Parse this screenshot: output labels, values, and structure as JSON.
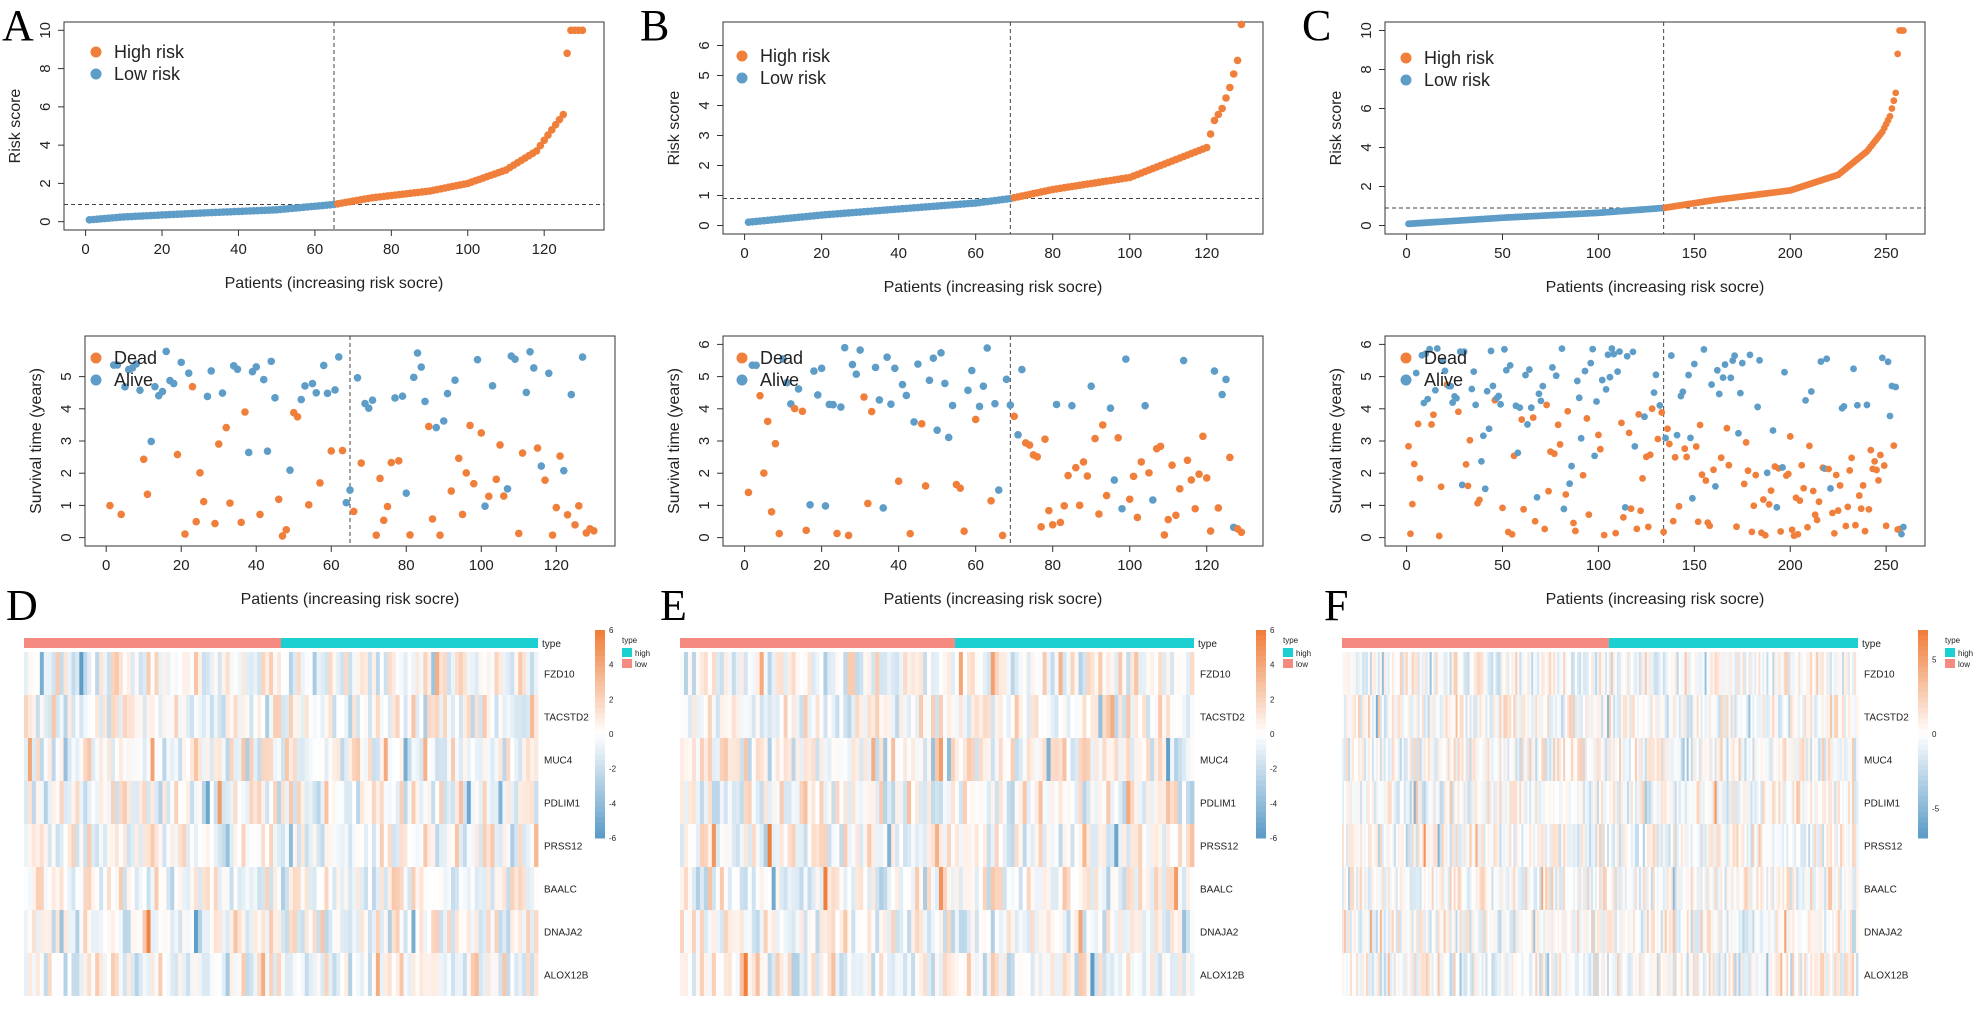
{
  "colors": {
    "high": "#f07f3c",
    "low": "#5d9dc8",
    "dead": "#f07f3c",
    "alive": "#5d9dc8",
    "type_high": "#1ccfd0",
    "type_low": "#f58b80",
    "heat_high": "#f07f3c",
    "heat_mid": "#ffffff",
    "heat_low": "#5d9dc8"
  },
  "panels": {
    "A": "A",
    "B": "B",
    "C": "C",
    "D": "D",
    "E": "E",
    "F": "F"
  },
  "genes": [
    "FZD10",
    "TACSTD2",
    "MUC4",
    "PDLIM1",
    "PRSS12",
    "BAALC",
    "DNAJA2",
    "ALOX12B"
  ],
  "chart_data": [
    {
      "id": "A-risk",
      "type": "scatter",
      "title": "",
      "xlabel": "Patients (increasing risk socre)",
      "ylabel": "Risk score",
      "n": 130,
      "cutoff_index": 65,
      "cutoff_value": 0.9,
      "xlim": [
        0,
        130
      ],
      "ylim": [
        0,
        10
      ],
      "xticks": [
        0,
        20,
        40,
        60,
        80,
        100,
        120
      ],
      "yticks": [
        0,
        2,
        4,
        6,
        8,
        10
      ],
      "legend": [
        {
          "label": "High risk",
          "color": "high"
        },
        {
          "label": "Low risk",
          "color": "low"
        }
      ],
      "curve": [
        [
          0,
          0.08
        ],
        [
          10,
          0.25
        ],
        [
          30,
          0.45
        ],
        [
          50,
          0.62
        ],
        [
          65,
          0.9
        ],
        [
          75,
          1.25
        ],
        [
          90,
          1.6
        ],
        [
          100,
          2.0
        ],
        [
          110,
          2.7
        ],
        [
          118,
          3.7
        ],
        [
          122,
          4.8
        ],
        [
          125,
          5.6
        ],
        [
          126,
          8.8
        ],
        [
          127,
          10
        ],
        [
          130,
          10
        ]
      ]
    },
    {
      "id": "B-risk",
      "type": "scatter",
      "title": "",
      "xlabel": "Patients (increasing risk socre)",
      "ylabel": "Risk score",
      "n": 129,
      "cutoff_index": 69,
      "cutoff_value": 0.9,
      "xlim": [
        0,
        129
      ],
      "ylim": [
        0,
        6.5
      ],
      "xticks": [
        0,
        20,
        40,
        60,
        80,
        100,
        120
      ],
      "yticks": [
        0,
        1,
        2,
        3,
        4,
        5,
        6
      ],
      "legend": [
        {
          "label": "High risk",
          "color": "high"
        },
        {
          "label": "Low risk",
          "color": "low"
        }
      ],
      "curve": [
        [
          0,
          0.1
        ],
        [
          20,
          0.35
        ],
        [
          40,
          0.55
        ],
        [
          60,
          0.75
        ],
        [
          69,
          0.9
        ],
        [
          80,
          1.2
        ],
        [
          100,
          1.6
        ],
        [
          110,
          2.1
        ],
        [
          118,
          2.5
        ],
        [
          120,
          2.6
        ],
        [
          122,
          3.5
        ],
        [
          124,
          3.9
        ],
        [
          126,
          4.6
        ],
        [
          128,
          5.5
        ],
        [
          129,
          6.7
        ]
      ]
    },
    {
      "id": "C-risk",
      "type": "scatter",
      "title": "",
      "xlabel": "Patients (increasing risk socre)",
      "ylabel": "Risk score",
      "n": 259,
      "cutoff_index": 134,
      "cutoff_value": 0.9,
      "xlim": [
        0,
        259
      ],
      "ylim": [
        0,
        10
      ],
      "xticks": [
        0,
        50,
        100,
        150,
        200,
        250
      ],
      "yticks": [
        0,
        2,
        4,
        6,
        8,
        10
      ],
      "legend": [
        {
          "label": "High risk",
          "color": "high"
        },
        {
          "label": "Low risk",
          "color": "low"
        }
      ],
      "curve": [
        [
          0,
          0.08
        ],
        [
          50,
          0.4
        ],
        [
          100,
          0.65
        ],
        [
          134,
          0.9
        ],
        [
          160,
          1.3
        ],
        [
          200,
          1.8
        ],
        [
          225,
          2.6
        ],
        [
          240,
          3.8
        ],
        [
          248,
          4.8
        ],
        [
          252,
          5.6
        ],
        [
          255,
          6.8
        ],
        [
          256,
          8.8
        ],
        [
          257,
          10
        ],
        [
          259,
          10
        ]
      ]
    },
    {
      "id": "A-surv",
      "type": "scatter",
      "title": "",
      "xlabel": "Patients (increasing risk socre)",
      "ylabel": "Survival time (years)",
      "n": 130,
      "cutoff_index": 65,
      "xlim": [
        0,
        130
      ],
      "ylim": [
        0,
        6
      ],
      "xticks": [
        0,
        20,
        40,
        60,
        80,
        100,
        120
      ],
      "yticks": [
        0,
        1,
        2,
        3,
        4,
        5
      ],
      "legend": [
        {
          "label": "Dead",
          "color": "dead"
        },
        {
          "label": "Alive",
          "color": "alive"
        }
      ],
      "seed": 11
    },
    {
      "id": "B-surv",
      "type": "scatter",
      "title": "",
      "xlabel": "Patients (increasing risk socre)",
      "ylabel": "Survival time (years)",
      "n": 129,
      "cutoff_index": 69,
      "xlim": [
        0,
        129
      ],
      "ylim": [
        0,
        6
      ],
      "xticks": [
        0,
        20,
        40,
        60,
        80,
        100,
        120
      ],
      "yticks": [
        0,
        1,
        2,
        3,
        4,
        5,
        6
      ],
      "legend": [
        {
          "label": "Dead",
          "color": "dead"
        },
        {
          "label": "Alive",
          "color": "alive"
        }
      ],
      "seed": 23
    },
    {
      "id": "C-surv",
      "type": "scatter",
      "title": "",
      "xlabel": "Patients (increasing risk socre)",
      "ylabel": "Survival time (years)",
      "n": 259,
      "cutoff_index": 134,
      "xlim": [
        0,
        259
      ],
      "ylim": [
        0,
        6
      ],
      "xticks": [
        0,
        50,
        100,
        150,
        200,
        250
      ],
      "yticks": [
        0,
        1,
        2,
        3,
        4,
        5,
        6
      ],
      "legend": [
        {
          "label": "Dead",
          "color": "dead"
        },
        {
          "label": "Alive",
          "color": "alive"
        }
      ],
      "seed": 37
    },
    {
      "id": "D-heat",
      "type": "heatmap",
      "cols": 130,
      "low_count": 65,
      "legend_ticks": [
        6,
        4,
        2,
        0,
        -2,
        -4,
        -6
      ],
      "range": [
        -6,
        6
      ],
      "annotation_title": "type",
      "annotation": [
        {
          "label": "high",
          "color": "type_high"
        },
        {
          "label": "low",
          "color": "type_low"
        }
      ],
      "seed": 101
    },
    {
      "id": "E-heat",
      "type": "heatmap",
      "cols": 129,
      "low_count": 69,
      "legend_ticks": [
        6,
        4,
        2,
        0,
        -2,
        -4,
        -6
      ],
      "range": [
        -6,
        6
      ],
      "annotation_title": "type",
      "annotation": [
        {
          "label": "high",
          "color": "type_high"
        },
        {
          "label": "low",
          "color": "type_low"
        }
      ],
      "seed": 202
    },
    {
      "id": "F-heat",
      "type": "heatmap",
      "cols": 259,
      "low_count": 134,
      "legend_ticks": [
        5,
        0,
        -5
      ],
      "range": [
        -7,
        7
      ],
      "annotation_title": "type",
      "annotation": [
        {
          "label": "high",
          "color": "type_high"
        },
        {
          "label": "low",
          "color": "type_low"
        }
      ],
      "seed": 303
    }
  ]
}
